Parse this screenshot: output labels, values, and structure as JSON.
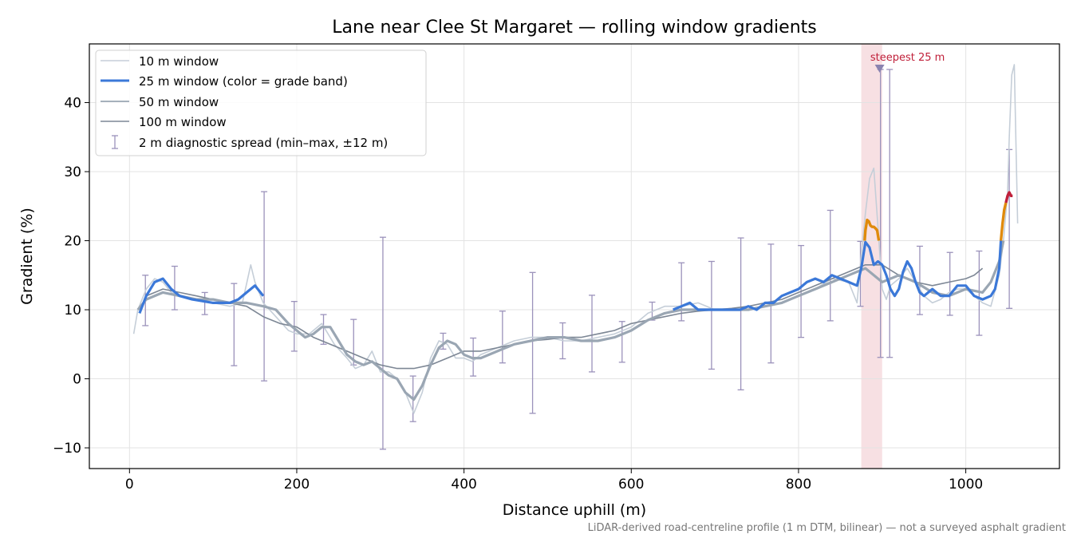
{
  "chart_data": {
    "type": "line",
    "title": "Lane near Clee St Margaret — rolling window gradients",
    "xlabel": "Distance uphill (m)",
    "ylabel": "Gradient (%)",
    "xlim": [
      -48,
      1112
    ],
    "ylim": [
      -13,
      48.5
    ],
    "x_ticks": [
      0,
      200,
      400,
      600,
      800,
      1000
    ],
    "y_ticks": [
      -10,
      0,
      10,
      20,
      30,
      40
    ],
    "x_tick_labels": [
      "0",
      "200",
      "400",
      "600",
      "800",
      "1000"
    ],
    "y_tick_labels": [
      "−10",
      "0",
      "10",
      "20",
      "30",
      "40"
    ],
    "grid": true,
    "legend_position": "top-left",
    "footnote": "LiDAR-derived road-centreline profile (1 m DTM, bilinear) — not a surveyed asphalt gradient",
    "colors": {
      "w10": "#c5ced8",
      "w25": "#3b78d8",
      "w50": "#9aa6b3",
      "w100": "#7d8795",
      "errorbar": "#9b92bb",
      "steep_band": "#e8a5ae",
      "steep_text": "#c0203a",
      "marker": "#8a83b0",
      "band_orange": "#e08a0c",
      "band_red": "#c0203a"
    },
    "steepest": {
      "label": "steepest 25 m",
      "x_range": [
        875,
        900
      ],
      "marker_x": 897,
      "marker_y": 44.8
    },
    "series": [
      {
        "key": "w10",
        "name": "10 m window",
        "x": [
          5,
          10,
          20,
          30,
          40,
          50,
          60,
          80,
          100,
          120,
          135,
          145,
          150,
          160,
          175,
          190,
          200,
          215,
          230,
          245,
          260,
          270,
          280,
          290,
          300,
          310,
          320,
          330,
          340,
          350,
          360,
          370,
          380,
          390,
          400,
          410,
          420,
          440,
          460,
          480,
          500,
          520,
          540,
          560,
          580,
          600,
          620,
          640,
          660,
          680,
          700,
          720,
          740,
          760,
          780,
          800,
          820,
          840,
          860,
          870,
          875,
          880,
          885,
          890,
          895,
          900,
          905,
          910,
          920,
          930,
          940,
          950,
          960,
          970,
          980,
          990,
          1000,
          1010,
          1020,
          1030,
          1040,
          1045,
          1050,
          1052,
          1055,
          1058,
          1062
        ],
        "y": [
          6.5,
          10,
          13,
          14.5,
          14,
          12.5,
          12,
          11.5,
          11,
          10.5,
          11,
          16.5,
          14,
          11,
          9,
          7,
          6.5,
          6.5,
          8,
          5,
          3,
          1.5,
          2,
          4,
          1,
          1,
          0,
          -2,
          -5,
          -2,
          3,
          5.5,
          5,
          3,
          3,
          2.5,
          3.5,
          4.5,
          5.5,
          6,
          6,
          5.5,
          5.5,
          6,
          6.5,
          7.5,
          9.5,
          10.5,
          10.5,
          11,
          10,
          10,
          10,
          10.5,
          11,
          12,
          13,
          14.5,
          14,
          11,
          18,
          24,
          29,
          30.5,
          22,
          13,
          11.5,
          13.5,
          14.5,
          16,
          14,
          12,
          11,
          11.5,
          12.5,
          13,
          13,
          12,
          11,
          10.5,
          15,
          20,
          27,
          35,
          44,
          45.5,
          22.5
        ]
      },
      {
        "key": "w25",
        "name": "25 m window (color = grade band)",
        "x": [
          12,
          20,
          30,
          40,
          50,
          60,
          75,
          90,
          100,
          110,
          120,
          130,
          140,
          150,
          160,
          650,
          660,
          670,
          680,
          730,
          740,
          750,
          760,
          770,
          780,
          790,
          800,
          810,
          820,
          830,
          840,
          850,
          860,
          870,
          875,
          880,
          885,
          890,
          895,
          900,
          905,
          910,
          915,
          920,
          925,
          930,
          935,
          940,
          945,
          950,
          960,
          970,
          980,
          990,
          1000,
          1010,
          1020,
          1030,
          1035,
          1040,
          1042
        ],
        "y": [
          9.5,
          12,
          14,
          14.5,
          13,
          12,
          11.5,
          11.2,
          11,
          11,
          11,
          11.5,
          12.5,
          13.5,
          12,
          10,
          10.5,
          11,
          10,
          10,
          10.5,
          10,
          11,
          11,
          12,
          12.5,
          13,
          14,
          14.5,
          14,
          15,
          14.5,
          14,
          13.5,
          16,
          19.8,
          19,
          16.5,
          17,
          16.5,
          15,
          13,
          12,
          13,
          15.5,
          17,
          16,
          14,
          12.5,
          12,
          13,
          12,
          12,
          13.5,
          13.5,
          12,
          11.5,
          12,
          13,
          16,
          20
        ],
        "bands": [
          {
            "color": "orange",
            "x": [
              879,
              880,
              882,
              884,
              886,
              888,
              890,
              892,
              894,
              896
            ],
            "y": [
              20,
              21.5,
              23,
              22.8,
              22.2,
              22,
              22,
              21.8,
              21.5,
              20
            ]
          },
          {
            "color": "orange",
            "x": [
              1042,
              1044,
              1046,
              1048
            ],
            "y": [
              20,
              22.5,
              24.5,
              25.5
            ]
          },
          {
            "color": "red",
            "x": [
              1048,
              1050,
              1052,
              1054,
              1056
            ],
            "y": [
              25.5,
              26.5,
              27,
              26.5,
              26.5
            ]
          }
        ]
      },
      {
        "key": "w50",
        "name": "50 m window",
        "x": [
          10,
          20,
          40,
          60,
          80,
          100,
          120,
          140,
          160,
          175,
          190,
          200,
          210,
          220,
          230,
          240,
          250,
          260,
          270,
          280,
          290,
          300,
          310,
          320,
          330,
          340,
          350,
          360,
          370,
          380,
          390,
          400,
          410,
          420,
          440,
          460,
          480,
          500,
          520,
          540,
          560,
          580,
          600,
          620,
          640,
          660,
          680,
          700,
          720,
          740,
          760,
          780,
          800,
          820,
          840,
          860,
          880,
          900,
          920,
          940,
          960,
          980,
          1000,
          1020,
          1030,
          1040,
          1045
        ],
        "y": [
          10,
          11.5,
          12.5,
          12,
          11.5,
          11.5,
          11,
          11,
          10.5,
          10,
          8,
          7,
          6,
          6.5,
          7.5,
          7.5,
          5.5,
          3.5,
          2.5,
          2,
          2.5,
          1.5,
          0.5,
          0,
          -2,
          -3,
          -1,
          2,
          4.5,
          5.5,
          5,
          3.5,
          3,
          3,
          4,
          5,
          5.5,
          6,
          6,
          5.5,
          5.5,
          6,
          7,
          8.5,
          9.5,
          10,
          10,
          10,
          10,
          10,
          10.5,
          11,
          12,
          13,
          14,
          15,
          16,
          14,
          15,
          14,
          12.5,
          12,
          13,
          12.5,
          14,
          17,
          20
        ]
      },
      {
        "key": "w100",
        "name": "100 m window",
        "x": [
          20,
          40,
          60,
          80,
          100,
          120,
          140,
          160,
          180,
          200,
          220,
          240,
          260,
          280,
          300,
          320,
          340,
          360,
          380,
          400,
          420,
          440,
          460,
          480,
          500,
          520,
          540,
          560,
          580,
          600,
          620,
          640,
          660,
          680,
          700,
          720,
          740,
          760,
          780,
          800,
          820,
          840,
          860,
          880,
          900,
          920,
          940,
          960,
          980,
          1000,
          1010,
          1020
        ],
        "y": [
          12,
          13,
          12.5,
          12,
          11.5,
          11,
          10.5,
          9,
          8,
          7.5,
          6,
          5,
          4,
          3,
          2,
          1.5,
          1.5,
          2,
          3,
          4,
          4,
          4.5,
          5,
          5.5,
          5.7,
          6,
          6,
          6.5,
          7,
          8,
          8.5,
          9,
          9.5,
          9.8,
          10,
          10.2,
          10.5,
          11,
          11.5,
          12.5,
          13.5,
          14.5,
          15.5,
          16.5,
          16.5,
          15,
          14,
          13.5,
          14,
          14.5,
          15,
          16
        ]
      }
    ],
    "errorbars": {
      "name": "2 m diagnostic spread (min–max, ±12 m)",
      "x": [
        19,
        54,
        90,
        125,
        161,
        197,
        232,
        268,
        303,
        339,
        375,
        411,
        446,
        482,
        518,
        553,
        589,
        625,
        660,
        696,
        731,
        767,
        803,
        838,
        874,
        898,
        909,
        945,
        981,
        1016,
        1052
      ],
      "low": [
        7.7,
        10,
        9.3,
        1.9,
        -0.3,
        4,
        5,
        2,
        -10.2,
        -6.2,
        4.3,
        0.4,
        2.3,
        -5,
        2.9,
        1,
        2.4,
        8.5,
        8.4,
        1.4,
        -1.6,
        2.3,
        6,
        8.4,
        10.5,
        3.1,
        3.1,
        9.3,
        9.2,
        6.3,
        10.2
      ],
      "high": [
        15,
        16.3,
        12.5,
        13.8,
        27.1,
        11.2,
        9.3,
        8.6,
        20.5,
        0.4,
        6.6,
        5.9,
        9.8,
        15.4,
        8.1,
        12.1,
        8.3,
        11.1,
        16.8,
        17,
        20.4,
        19.5,
        19.3,
        24.4,
        19.9,
        44.8,
        44.8,
        19.2,
        18.3,
        18.5,
        33.2
      ]
    }
  }
}
